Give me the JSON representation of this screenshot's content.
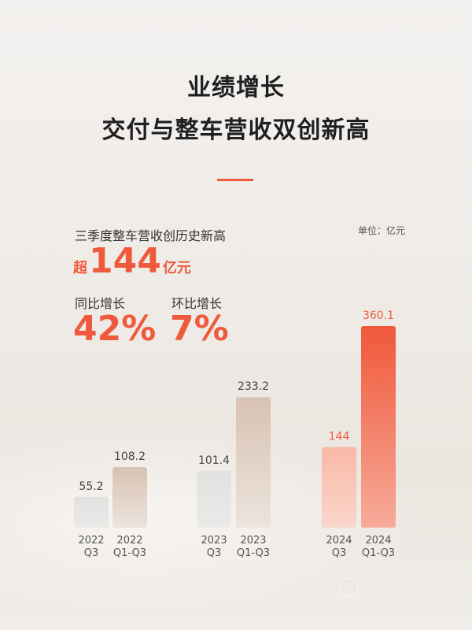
{
  "header": {
    "title_line1": "业绩增长",
    "title_line2": "交付与整车营收双创新高"
  },
  "summary": {
    "subtitle": "三季度整车营收创历史新高",
    "unit": "单位：亿元",
    "headline_prefix": "超",
    "headline_value": "144",
    "headline_suffix": "亿元",
    "yoy_label": "同比增长",
    "yoy_value": "42%",
    "qoq_label": "环比增长",
    "qoq_value": "7%"
  },
  "colors": {
    "accent": "#f05a3c",
    "grey_bar": "#e2e0de",
    "tan_bar": "#d9c3b3"
  },
  "chart_data": {
    "type": "bar",
    "title": "",
    "xlabel": "",
    "ylabel": "",
    "unit": "亿元",
    "ylim": [
      0,
      360.1
    ],
    "bars": [
      {
        "line1": "2022",
        "line2": "Q3",
        "value": 55.2,
        "label": "55.2",
        "style": "grey"
      },
      {
        "line1": "2022",
        "line2": "Q1-Q3",
        "value": 108.2,
        "label": "108.2",
        "style": "tan"
      },
      {
        "line1": "2023",
        "line2": "Q3",
        "value": 101.4,
        "label": "101.4",
        "style": "grey"
      },
      {
        "line1": "2023",
        "line2": "Q1-Q3",
        "value": 233.2,
        "label": "233.2",
        "style": "tan"
      },
      {
        "line1": "2024",
        "line2": "Q3",
        "value": 144,
        "label": "144",
        "style": "orange-light"
      },
      {
        "line1": "2024",
        "line2": "Q1-Q3",
        "value": 360.1,
        "label": "360.1",
        "style": "orange"
      }
    ]
  }
}
